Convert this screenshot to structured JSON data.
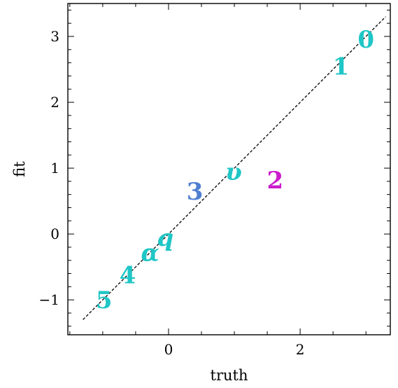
{
  "chart_data": {
    "type": "scatter",
    "title": "",
    "xlabel": "truth",
    "ylabel": "fit",
    "xlim": [
      -1.53,
      3.37
    ],
    "ylim": [
      -1.53,
      3.5
    ],
    "xticks": [
      0,
      2
    ],
    "yticks": [
      -1,
      0,
      1,
      2,
      3
    ],
    "x_tick_labels": [
      "0",
      "2"
    ],
    "y_tick_labels": [
      "−1",
      "0",
      "1",
      "2",
      "3"
    ],
    "grid": false,
    "reference_line": {
      "style": "dashed",
      "color": "#000000",
      "x": [
        -1.3,
        3.3
      ],
      "y": [
        -1.3,
        3.3
      ]
    },
    "points": [
      {
        "label": "0",
        "x": 3.0,
        "y": 2.96,
        "color": "#1fc6c6",
        "style": "upright"
      },
      {
        "label": "1",
        "x": 2.62,
        "y": 2.55,
        "color": "#1fc6c6",
        "style": "upright"
      },
      {
        "label": "υ",
        "x": 0.99,
        "y": 0.95,
        "color": "#1fc6c6",
        "style": "script"
      },
      {
        "label": "2",
        "x": 1.62,
        "y": 0.82,
        "color": "#cc1ccc",
        "style": "upright"
      },
      {
        "label": "3",
        "x": 0.4,
        "y": 0.65,
        "color": "#4f7fd0",
        "style": "upright"
      },
      {
        "label": "q",
        "x": -0.05,
        "y": -0.05,
        "color": "#1fc6c6",
        "style": "script"
      },
      {
        "label": "α",
        "x": -0.28,
        "y": -0.28,
        "color": "#1fc6c6",
        "style": "script"
      },
      {
        "label": "4",
        "x": -0.62,
        "y": -0.62,
        "color": "#1fc6c6",
        "style": "upright"
      },
      {
        "label": "5",
        "x": -0.98,
        "y": -1.0,
        "color": "#1fc6c6",
        "style": "upright"
      }
    ]
  }
}
